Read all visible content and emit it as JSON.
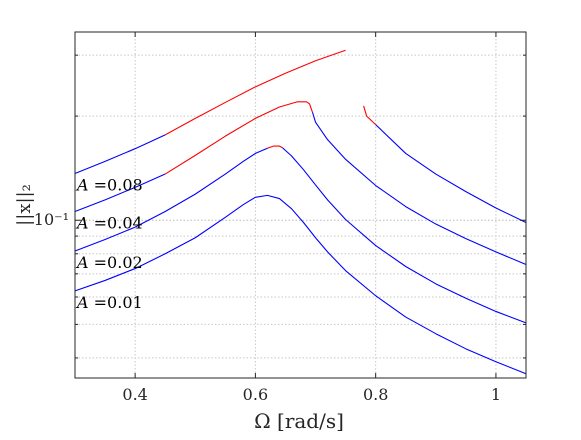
{
  "chart_data": {
    "type": "line",
    "title": "",
    "xlabel": "Ω [rad/s]",
    "ylabel": "||x||₂",
    "xlim": [
      0.3,
      1.05
    ],
    "ylim": [
      0.035,
      0.35
    ],
    "yscale": "log",
    "grid": true,
    "x_ticks": [
      0.4,
      0.6,
      0.8,
      1
    ],
    "x_tick_labels": [
      "0.4",
      "0.6",
      "0.8",
      "1"
    ],
    "y_ticks": [
      0.1
    ],
    "y_tick_labels": [
      "10⁻¹"
    ],
    "colors": {
      "stable": "#0000ff",
      "unstable": "#ff0000",
      "grid": "#c8c8c8",
      "axis": "#262626"
    },
    "series": [
      {
        "label": "A =0.01",
        "segments": [
          {
            "stability": "stable",
            "x": [
              0.3,
              0.35,
              0.4,
              0.45,
              0.5,
              0.55,
              0.58,
              0.6,
              0.62,
              0.64,
              0.66,
              0.68,
              0.7,
              0.72,
              0.75,
              0.8,
              0.85,
              0.9,
              0.95,
              1.0,
              1.05
            ],
            "y": [
              0.0625,
              0.067,
              0.0725,
              0.08,
              0.089,
              0.102,
              0.111,
              0.1165,
              0.118,
              0.1155,
              0.108,
              0.0985,
              0.089,
              0.081,
              0.0715,
              0.0605,
              0.0525,
              0.047,
              0.0425,
              0.039,
              0.036
            ]
          }
        ]
      },
      {
        "label": "A =0.02",
        "segments": [
          {
            "stability": "stable",
            "x": [
              0.3,
              0.35,
              0.4,
              0.45,
              0.5,
              0.55,
              0.58,
              0.6,
              0.62
            ],
            "y": [
              0.0815,
              0.088,
              0.0955,
              0.106,
              0.119,
              0.136,
              0.148,
              0.156,
              0.1615
            ]
          },
          {
            "stability": "unstable",
            "x": [
              0.62,
              0.63,
              0.64,
              0.645
            ],
            "y": [
              0.1615,
              0.1638,
              0.1638,
              0.162
            ]
          },
          {
            "stability": "stable",
            "x": [
              0.645,
              0.66,
              0.68,
              0.7,
              0.72,
              0.75,
              0.8,
              0.85,
              0.9,
              0.95,
              1.0,
              1.05
            ],
            "y": [
              0.162,
              0.1535,
              0.14,
              0.1265,
              0.1145,
              0.1005,
              0.0845,
              0.0735,
              0.0655,
              0.0595,
              0.0545,
              0.0505
            ]
          }
        ]
      },
      {
        "label": "A =0.04",
        "segments": [
          {
            "stability": "stable",
            "x": [
              0.3,
              0.35,
              0.4,
              0.45
            ],
            "y": [
              0.106,
              0.1145,
              0.1245,
              0.136
            ]
          },
          {
            "stability": "unstable",
            "x": [
              0.45,
              0.5,
              0.55,
              0.6,
              0.64,
              0.67,
              0.685,
              0.69,
              0.695
            ],
            "y": [
              0.136,
              0.154,
              0.175,
              0.197,
              0.2125,
              0.22,
              0.22,
              0.217,
              0.205
            ]
          },
          {
            "stability": "stable",
            "x": [
              0.695,
              0.7,
              0.72,
              0.75,
              0.8,
              0.85,
              0.9,
              0.95,
              1.0,
              1.05
            ],
            "y": [
              0.205,
              0.192,
              0.171,
              0.15,
              0.126,
              0.1095,
              0.0975,
              0.0885,
              0.081,
              0.0745
            ]
          }
        ]
      },
      {
        "label": "A =0.08",
        "segments": [
          {
            "stability": "stable",
            "x": [
              0.3,
              0.35,
              0.4,
              0.45
            ],
            "y": [
              0.1365,
              0.148,
              0.161,
              0.1765
            ]
          },
          {
            "stability": "unstable",
            "x": [
              0.45,
              0.5,
              0.55,
              0.6,
              0.65,
              0.7,
              0.75
            ],
            "y": [
              0.1765,
              0.197,
              0.219,
              0.243,
              0.266,
              0.289,
              0.31
            ]
          },
          {
            "stability": "unstable",
            "x": [
              0.78,
              0.785,
              0.8
            ],
            "y": [
              0.214,
              0.2,
              0.189
            ]
          },
          {
            "stability": "stable",
            "x": [
              0.8,
              0.85,
              0.9,
              0.95,
              1.0,
              1.05
            ],
            "y": [
              0.189,
              0.156,
              0.136,
              0.121,
              0.1085,
              0.0985
            ]
          }
        ]
      }
    ]
  }
}
